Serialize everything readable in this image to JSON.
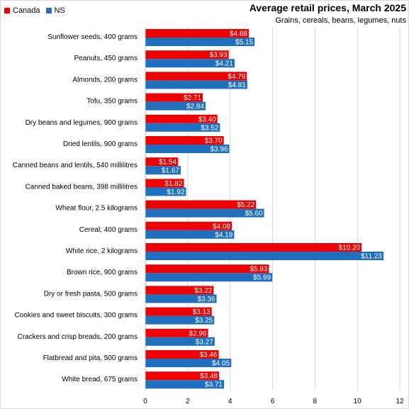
{
  "colors": {
    "canada": "#ee0000",
    "ns": "#1f6fbf",
    "grid": "#d9d9d9"
  },
  "chart_data": {
    "type": "bar",
    "orientation": "horizontal",
    "title": "Average retail prices, March 2025",
    "subtitle": "Grains, cereals, beans, legumes, nuts",
    "xlim": [
      0,
      12
    ],
    "xticks": [
      "0",
      "2",
      "4",
      "6",
      "8",
      "10",
      "12"
    ],
    "grid": "vertical",
    "legend_position": "top-left",
    "categories": [
      "Sunflower seeds, 400 grams",
      "Peanuts, 450 grams",
      "Almonds, 200 grams",
      "Tofu, 350 grams",
      "Dry beans and legumes, 900 grams",
      "Dried lentils, 900 grams",
      "Canned beans and lentils, 540 millilitres",
      "Canned baked beans, 398 millilitres",
      "Wheat flour, 2.5 kilograms",
      "Cereal, 400 grams",
      "White rice, 2 kilograms",
      "Brown rice, 900 grams",
      "Dry or fresh pasta, 500 grams",
      "Cookies and sweet biscuits, 300 grams",
      "Crackers and crisp breads, 200 grams",
      "Flatbread and pita, 500 grams",
      "White bread, 675 grams"
    ],
    "series": [
      {
        "name": "Canada",
        "color": "#ee0000",
        "values": [
          4.88,
          3.93,
          4.79,
          2.71,
          3.4,
          3.7,
          1.54,
          1.82,
          5.22,
          4.08,
          10.2,
          5.83,
          3.22,
          3.13,
          2.96,
          3.46,
          3.48
        ],
        "labels": [
          "$4.88",
          "$3.93",
          "$4.79",
          "$2.71",
          "$3.40",
          "$3.70",
          "$1.54",
          "$1.82",
          "$5.22",
          "$4.08",
          "$10.20",
          "$5.83",
          "$3.22",
          "$3.13",
          "$2.96",
          "$3.46",
          "$3.48"
        ]
      },
      {
        "name": "NS",
        "color": "#1f6fbf",
        "values": [
          5.15,
          4.21,
          4.81,
          2.84,
          3.52,
          3.96,
          1.67,
          1.92,
          5.6,
          4.19,
          11.23,
          5.99,
          3.36,
          3.25,
          3.27,
          4.05,
          3.71
        ],
        "labels": [
          "$5.15",
          "$4.21",
          "$4.81",
          "$2.84",
          "$3.52",
          "$3.96",
          "$1.67",
          "$1.92",
          "$5.60",
          "$4.19",
          "$11.23",
          "$5.99",
          "$3.36",
          "$3.25",
          "$3.27",
          "$4.05",
          "$3.71"
        ]
      }
    ]
  }
}
